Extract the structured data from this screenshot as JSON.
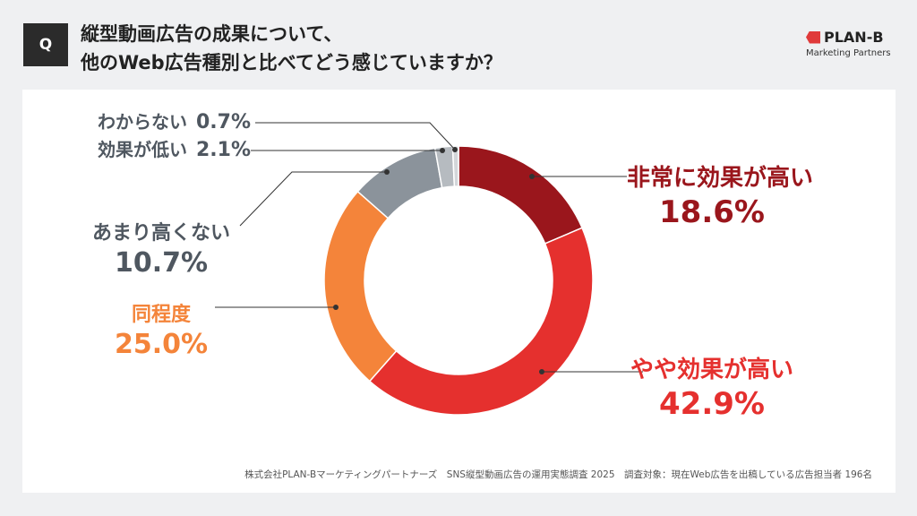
{
  "header": {
    "q_label": "Q",
    "title_line1": "縦型動画広告の成果について、",
    "title_line2": "他のWeb広告種別と比べてどう感じていますか？"
  },
  "logo": {
    "name": "PLAN-B",
    "sub": "Marketing Partners",
    "color": "#e03a3a"
  },
  "footer": "株式会社PLAN-Bマーケティングパートナーズ　SNS縦型動画広告の運用実態調査 2025　調査対象：現在Web広告を出稿している広告担当者 196名",
  "chart_data": {
    "type": "pie",
    "donut": true,
    "start": "top, clockwise",
    "categories": [
      "非常に効果が高い",
      "やや効果が高い",
      "同程度",
      "あまり高くない",
      "効果が低い",
      "わからない"
    ],
    "values": [
      18.6,
      42.9,
      25.0,
      10.7,
      2.1,
      0.7
    ],
    "value_labels": [
      "18.6%",
      "42.9%",
      "25.0%",
      "10.7%",
      "2.1%",
      "0.7%"
    ],
    "colors": [
      "#9a161c",
      "#e5302e",
      "#f4843a",
      "#8b939b",
      "#b6bbc0",
      "#d3d6d9"
    ],
    "label_colors": [
      "#9a161c",
      "#e5302e",
      "#f4843a",
      "#4f5760",
      "#4f5760",
      "#4f5760"
    ]
  }
}
